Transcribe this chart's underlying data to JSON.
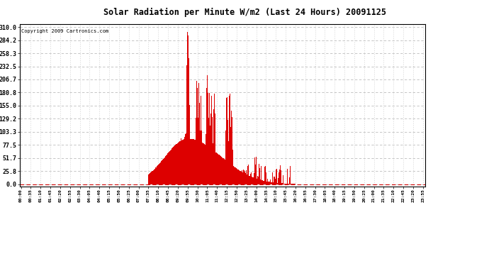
{
  "title": "Solar Radiation per Minute W/m2 (Last 24 Hours) 20091125",
  "copyright_text": "Copyright 2009 Cartronics.com",
  "bar_color": "#dd0000",
  "background_color": "#ffffff",
  "grid_color": "#bbbbbb",
  "dashed_line_color": "#cc0000",
  "y_ticks": [
    0.0,
    25.8,
    51.7,
    77.5,
    103.3,
    129.2,
    155.0,
    180.8,
    206.7,
    232.5,
    258.3,
    284.2,
    310.0
  ],
  "y_max": 310.0,
  "total_minutes": 1440,
  "tick_interval_minutes": 35
}
